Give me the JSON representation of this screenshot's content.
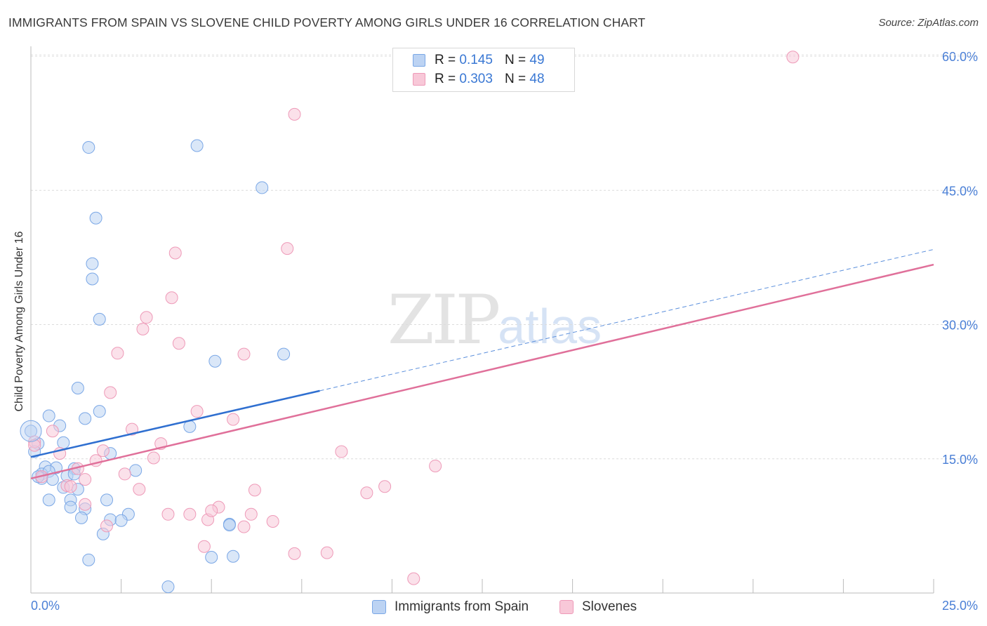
{
  "chart_data": {
    "type": "scatter",
    "title": "IMMIGRANTS FROM SPAIN VS SLOVENE CHILD POVERTY AMONG GIRLS UNDER 16 CORRELATION CHART",
    "source": "Source: ZipAtlas.com",
    "xlabel": "",
    "ylabel": "Child Poverty Among Girls Under 16",
    "xlim": [
      0,
      25
    ],
    "ylim": [
      0,
      60.0
    ],
    "x_ticks": [
      0,
      2.5,
      5,
      7.5,
      10,
      12.5,
      15,
      17.5,
      20,
      22.5,
      25
    ],
    "y_gridlines": [
      15,
      30,
      45,
      60
    ],
    "y_tick_labels": [
      "15.0%",
      "30.0%",
      "45.0%",
      "60.0%"
    ],
    "x_tick_labels": [
      "0.0%",
      "25.0%"
    ],
    "watermark": {
      "zip": "ZIP",
      "atlas": "atlas"
    },
    "series": [
      {
        "name": "Immigrants from Spain",
        "color": "#7aa7e6",
        "fill": "#bcd3f3",
        "R": "0.145",
        "N": "49",
        "trend": {
          "x0": 0,
          "y0": 15.2,
          "x1": 8.0,
          "y1": 22.6,
          "dash_x1": 25,
          "dash_y1": 38.4
        },
        "points": [
          [
            1.6,
            49.8
          ],
          [
            4.6,
            50.0
          ],
          [
            6.4,
            45.3
          ],
          [
            1.8,
            41.9
          ],
          [
            1.7,
            36.8
          ],
          [
            1.7,
            35.1
          ],
          [
            1.9,
            30.6
          ],
          [
            5.1,
            25.9
          ],
          [
            7.0,
            26.7
          ],
          [
            1.3,
            22.9
          ],
          [
            1.9,
            20.3
          ],
          [
            1.5,
            19.5
          ],
          [
            0.5,
            19.8
          ],
          [
            0.8,
            18.7
          ],
          [
            4.4,
            18.6
          ],
          [
            0.0,
            18.1
          ],
          [
            0.9,
            16.8
          ],
          [
            0.2,
            16.7
          ],
          [
            2.2,
            15.6
          ],
          [
            0.1,
            15.8
          ],
          [
            0.4,
            14.1
          ],
          [
            0.7,
            14.0
          ],
          [
            1.2,
            13.9
          ],
          [
            2.9,
            13.7
          ],
          [
            0.3,
            13.3
          ],
          [
            0.5,
            13.6
          ],
          [
            1.0,
            13.1
          ],
          [
            0.3,
            12.8
          ],
          [
            0.6,
            12.7
          ],
          [
            0.9,
            11.8
          ],
          [
            1.3,
            11.6
          ],
          [
            0.5,
            10.4
          ],
          [
            1.1,
            10.4
          ],
          [
            2.1,
            10.4
          ],
          [
            1.1,
            9.6
          ],
          [
            1.5,
            9.4
          ],
          [
            2.7,
            8.8
          ],
          [
            1.4,
            8.4
          ],
          [
            2.2,
            8.2
          ],
          [
            2.5,
            8.1
          ],
          [
            5.5,
            7.7
          ],
          [
            5.5,
            7.6
          ],
          [
            2.0,
            6.6
          ],
          [
            1.6,
            3.7
          ],
          [
            5.0,
            4.0
          ],
          [
            5.6,
            4.1
          ],
          [
            3.8,
            0.7
          ],
          [
            1.2,
            13.3
          ],
          [
            0.2,
            13.0
          ]
        ]
      },
      {
        "name": "Slovenes",
        "color": "#ee9ab8",
        "fill": "#f8c8d8",
        "R": "0.303",
        "N": "48",
        "trend": {
          "x0": 0,
          "y0": 12.8,
          "x1": 25,
          "y1": 36.7
        },
        "points": [
          [
            21.1,
            59.9
          ],
          [
            7.3,
            53.5
          ],
          [
            4.0,
            38.0
          ],
          [
            7.1,
            38.5
          ],
          [
            3.9,
            33.0
          ],
          [
            3.2,
            30.8
          ],
          [
            3.1,
            29.5
          ],
          [
            4.1,
            27.9
          ],
          [
            2.4,
            26.8
          ],
          [
            5.9,
            26.7
          ],
          [
            2.2,
            22.4
          ],
          [
            4.6,
            20.3
          ],
          [
            5.6,
            19.4
          ],
          [
            2.8,
            18.3
          ],
          [
            0.6,
            18.1
          ],
          [
            0.1,
            16.9
          ],
          [
            3.6,
            16.7
          ],
          [
            2.0,
            15.9
          ],
          [
            8.6,
            15.8
          ],
          [
            0.8,
            15.6
          ],
          [
            1.8,
            14.8
          ],
          [
            3.4,
            15.1
          ],
          [
            11.2,
            14.2
          ],
          [
            1.3,
            13.9
          ],
          [
            2.6,
            13.3
          ],
          [
            0.3,
            13.0
          ],
          [
            1.0,
            12.0
          ],
          [
            1.1,
            11.9
          ],
          [
            1.5,
            12.7
          ],
          [
            3.0,
            11.6
          ],
          [
            6.2,
            11.5
          ],
          [
            9.8,
            11.9
          ],
          [
            9.3,
            11.2
          ],
          [
            1.5,
            9.9
          ],
          [
            5.2,
            9.6
          ],
          [
            4.4,
            8.8
          ],
          [
            3.8,
            8.8
          ],
          [
            4.9,
            8.2
          ],
          [
            6.1,
            8.8
          ],
          [
            5.0,
            9.2
          ],
          [
            6.7,
            8.0
          ],
          [
            2.1,
            7.5
          ],
          [
            5.9,
            7.4
          ],
          [
            4.8,
            5.2
          ],
          [
            7.3,
            4.4
          ],
          [
            8.2,
            4.5
          ],
          [
            10.6,
            1.6
          ],
          [
            0.1,
            16.5
          ]
        ]
      }
    ],
    "legend_labels": {
      "r_prefix": "R =",
      "n_prefix": "N ="
    }
  }
}
